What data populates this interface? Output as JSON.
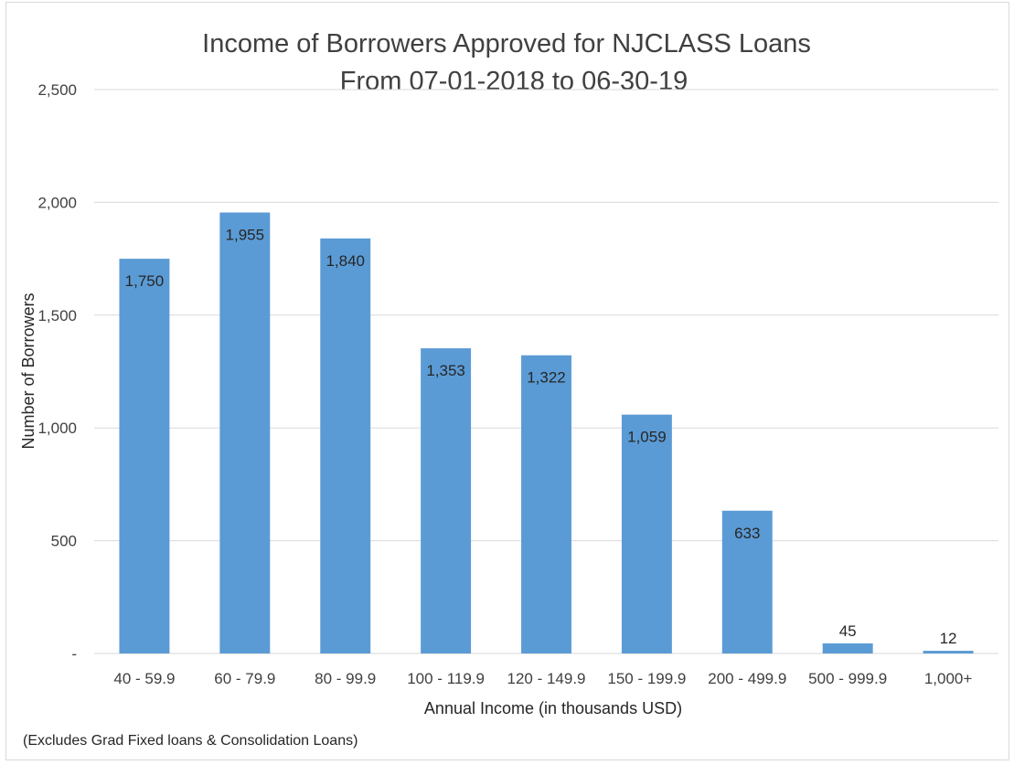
{
  "chart_data": {
    "type": "bar",
    "title_lines": [
      "Income of Borrowers Approved for NJCLASS Loans",
      "From 07-01-2018 to 06-30-19"
    ],
    "xlabel": "Annual Income (in thousands USD)",
    "ylabel": "Number of Borrowers",
    "footnote": "(Excludes Grad Fixed loans & Consolidation Loans)",
    "categories": [
      "40 - 59.9",
      "60 - 79.9",
      "80 - 99.9",
      "100 - 119.9",
      "120 - 149.9",
      "150 - 199.9",
      "200 - 499.9",
      "500 - 999.9",
      "1,000+"
    ],
    "values": [
      1750,
      1955,
      1840,
      1353,
      1322,
      1059,
      633,
      45,
      12
    ],
    "data_labels": [
      "1,750",
      "1,955",
      "1,840",
      "1,353",
      "1,322",
      "1,059",
      "633",
      "45",
      "12"
    ],
    "ylim": [
      0,
      2500
    ],
    "yticks": [
      0,
      500,
      1000,
      1500,
      2000,
      2500
    ],
    "ytick_labels": [
      "-",
      "500",
      "1,000",
      "1,500",
      "2,000",
      "2,500"
    ],
    "grid": true,
    "legend": "none",
    "bar_color": "#5b9bd5",
    "grid_color": "#d9d9d9"
  }
}
